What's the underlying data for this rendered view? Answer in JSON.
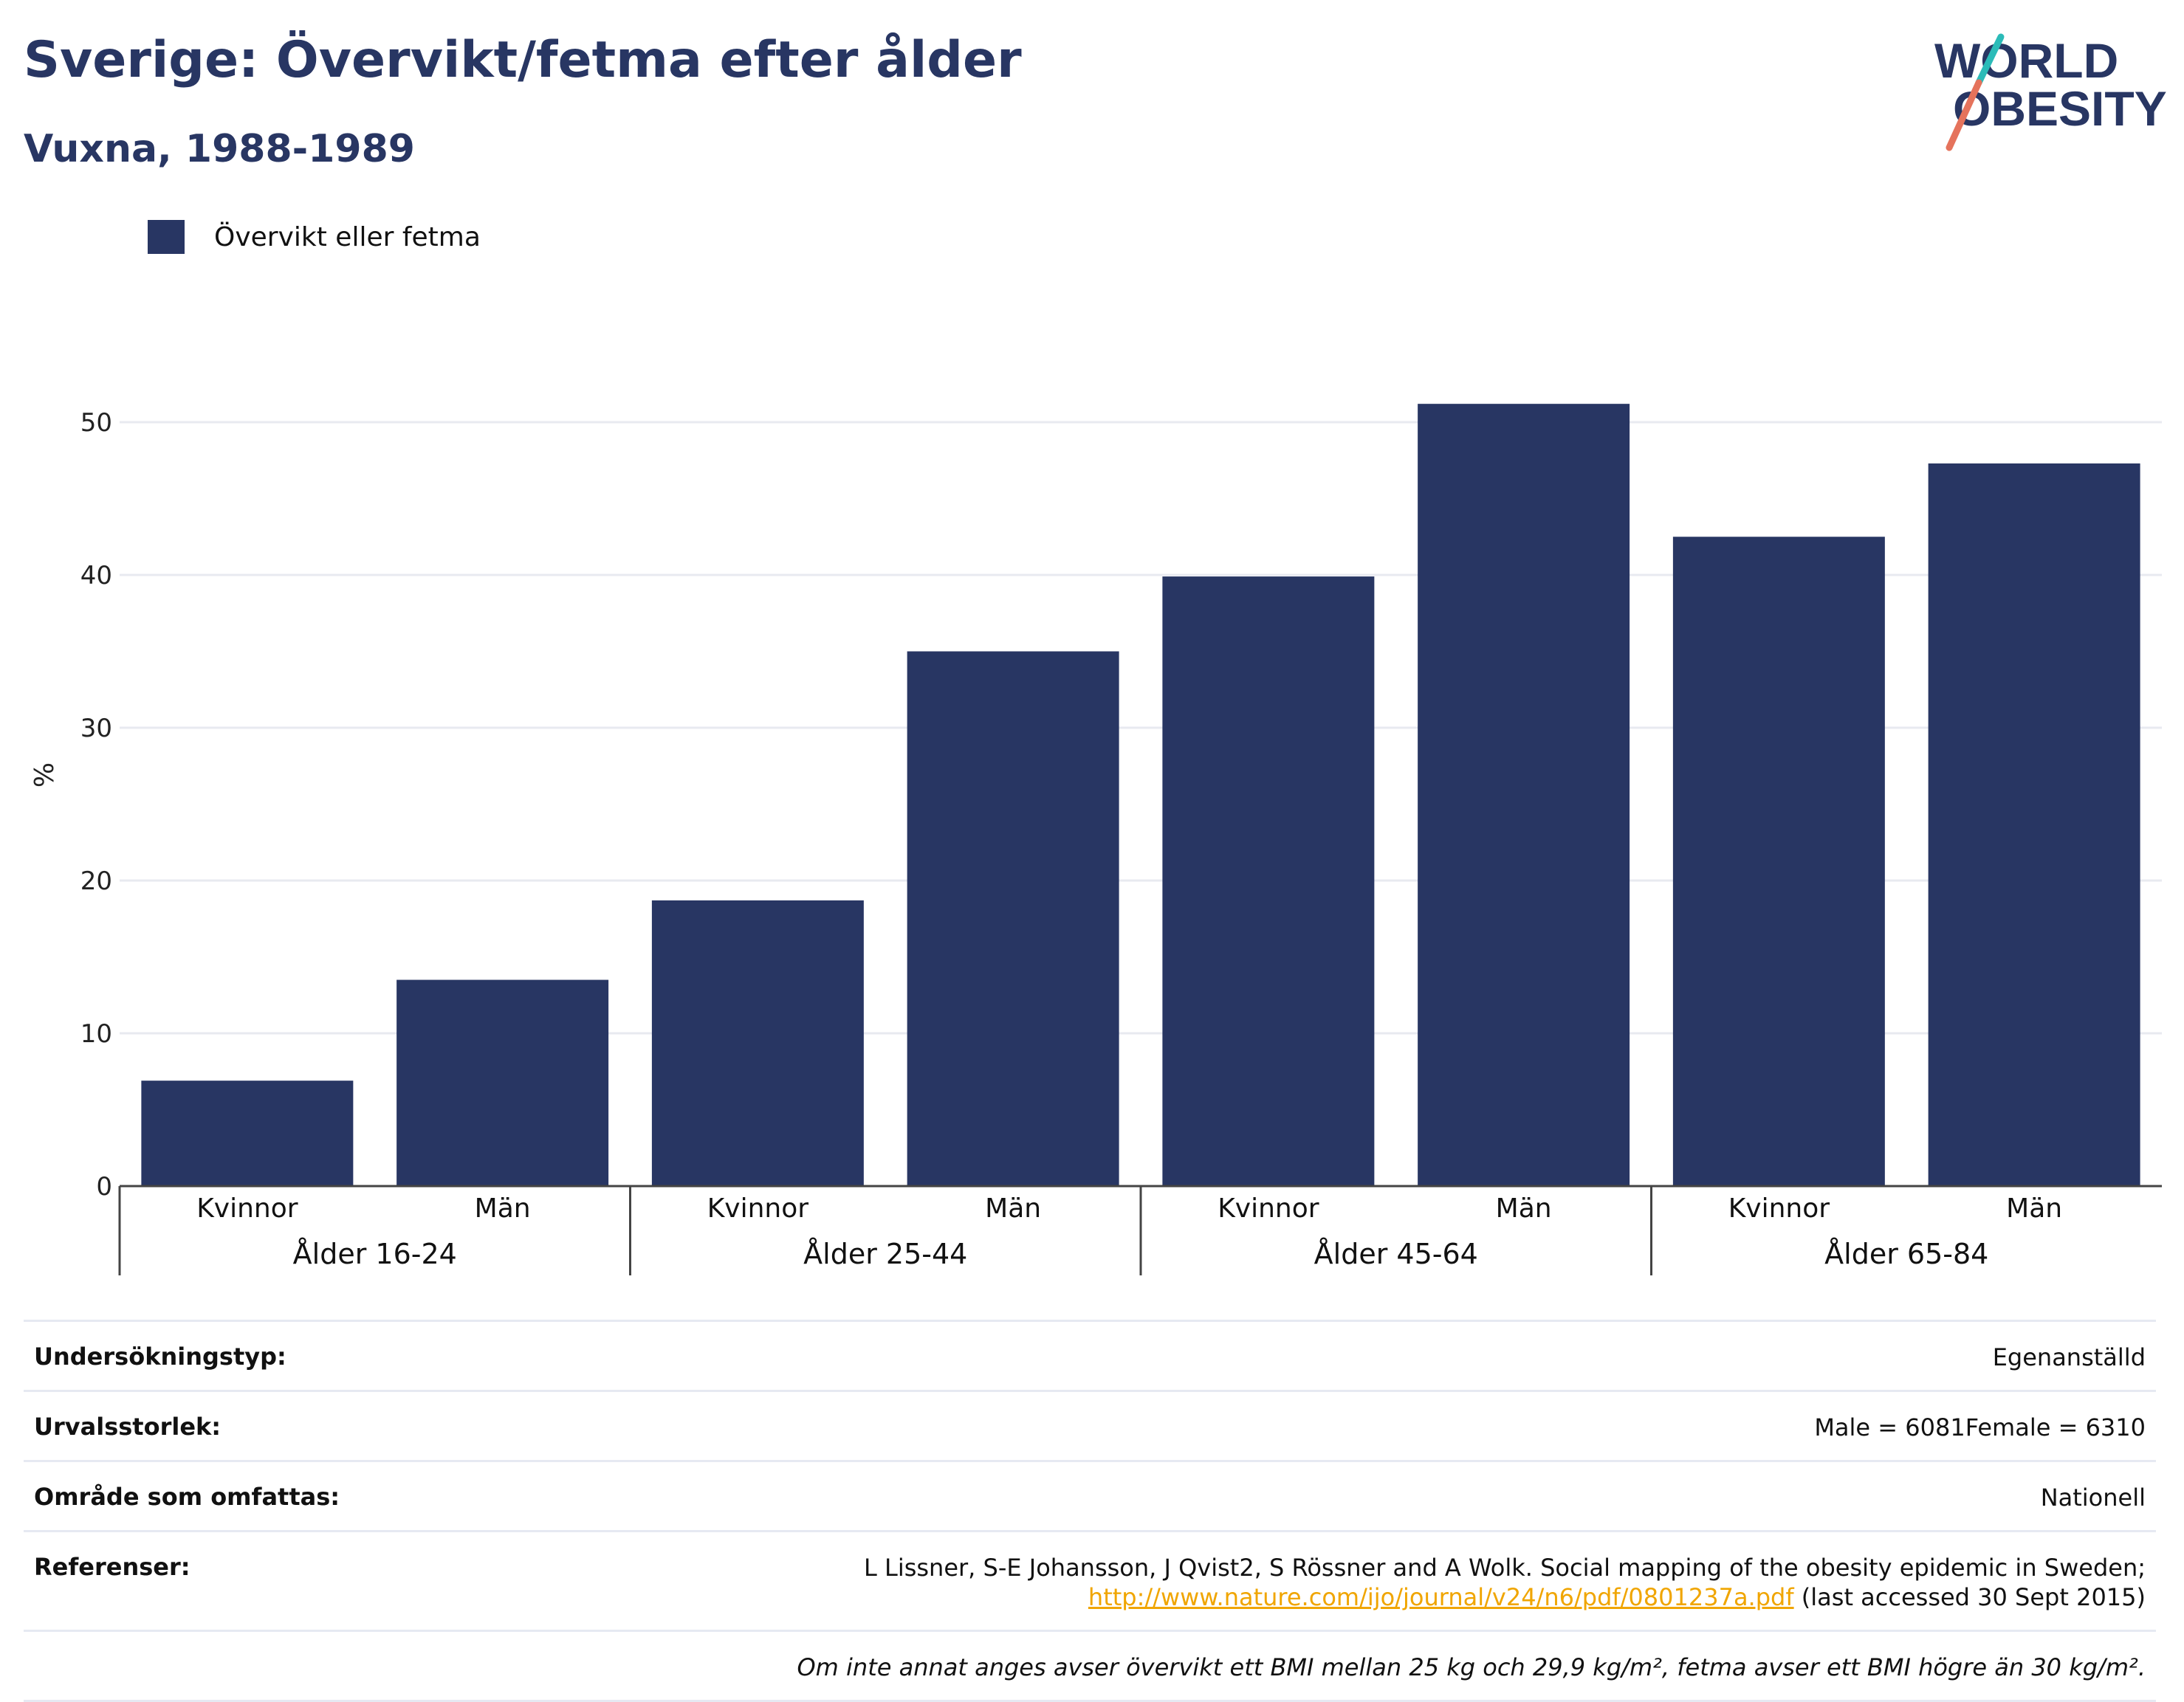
{
  "header": {
    "title": "Sverige: Övervikt/fetma efter ålder",
    "subtitle": "Vuxna, 1988-1989",
    "logo_line1": "WORLD",
    "logo_line2": "OBESITY"
  },
  "legend": {
    "label": "Övervikt eller fetma",
    "color": "#283663"
  },
  "chart_data": {
    "type": "bar",
    "title": "Sverige: Övervikt/fetma efter ålder",
    "subtitle": "Vuxna, 1988-1989",
    "ylabel": "%",
    "ylim": [
      0,
      55
    ],
    "yticks": [
      0,
      10,
      20,
      30,
      40,
      50
    ],
    "grid": true,
    "legend_position": "top-left",
    "groups": [
      "Ålder 16-24",
      "Ålder 25-44",
      "Ålder 45-64",
      "Ålder 65-84"
    ],
    "subcategories": [
      "Kvinnor",
      "Män"
    ],
    "series": [
      {
        "name": "Övervikt eller fetma",
        "color": "#283663",
        "values": [
          6.9,
          13.5,
          18.7,
          35.0,
          39.9,
          51.2,
          42.5,
          47.3
        ]
      }
    ]
  },
  "meta": {
    "survey_type_label": "Undersökningstyp:",
    "survey_type_value": "Egenanställd",
    "sample_size_label": "Urvalsstorlek:",
    "sample_size_value": "Male = 6081Female = 6310",
    "area_label": "Område som omfattas:",
    "area_value": "Nationell",
    "references_label": "Referenser:",
    "references_text": "L Lissner, S-E Johansson, J Qvist2, S Rössner and A Wolk. Social mapping of the obesity epidemic in Sweden;",
    "references_link": "http://www.nature.com/ijo/journal/v24/n6/pdf/0801237a.pdf",
    "references_accessed": " (last accessed 30 Sept 2015)",
    "note": "Om inte annat anges avser övervikt ett BMI mellan 25 kg och 29,9 kg/m², fetma avser ett BMI högre än 30 kg/m²."
  }
}
